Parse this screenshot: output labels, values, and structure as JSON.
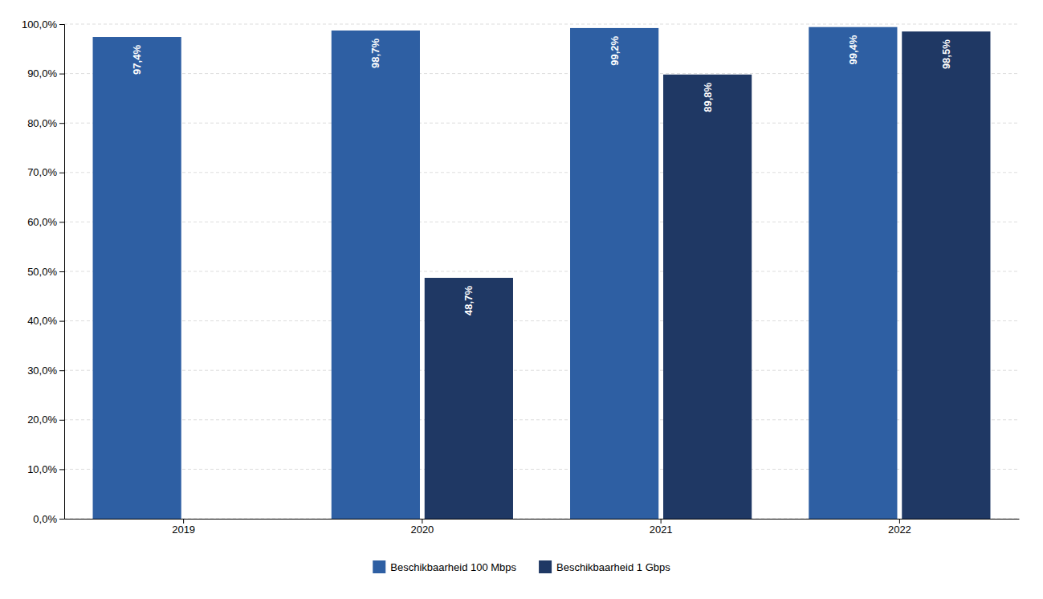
{
  "chart_data": {
    "type": "bar",
    "categories": [
      "2019",
      "2020",
      "2021",
      "2022"
    ],
    "series": [
      {
        "name": "Beschikbaarheid 100 Mbps",
        "color": "#2E5FA3",
        "values": [
          97.4,
          98.7,
          99.2,
          99.4
        ],
        "value_labels": [
          "97,4%",
          "98,7%",
          "99,2%",
          "99,4%"
        ]
      },
      {
        "name": "Beschikbaarheid 1 Gbps",
        "color": "#1F3864",
        "values": [
          null,
          48.7,
          89.8,
          98.5
        ],
        "value_labels": [
          null,
          "48,7%",
          "89,8%",
          "98,5%"
        ]
      }
    ],
    "ylim": [
      0,
      100
    ],
    "yticks": [
      {
        "value": 0,
        "label": "0,0%"
      },
      {
        "value": 10,
        "label": "10,0%"
      },
      {
        "value": 20,
        "label": "20,0%"
      },
      {
        "value": 30,
        "label": "30,0%"
      },
      {
        "value": 40,
        "label": "40,0%"
      },
      {
        "value": 50,
        "label": "50,0%"
      },
      {
        "value": 60,
        "label": "60,0%"
      },
      {
        "value": 70,
        "label": "70,0%"
      },
      {
        "value": 80,
        "label": "80,0%"
      },
      {
        "value": 90,
        "label": "90,0%"
      },
      {
        "value": 100,
        "label": "100,0%"
      }
    ],
    "grid": true,
    "legend": "bottom",
    "data_labels": true
  }
}
